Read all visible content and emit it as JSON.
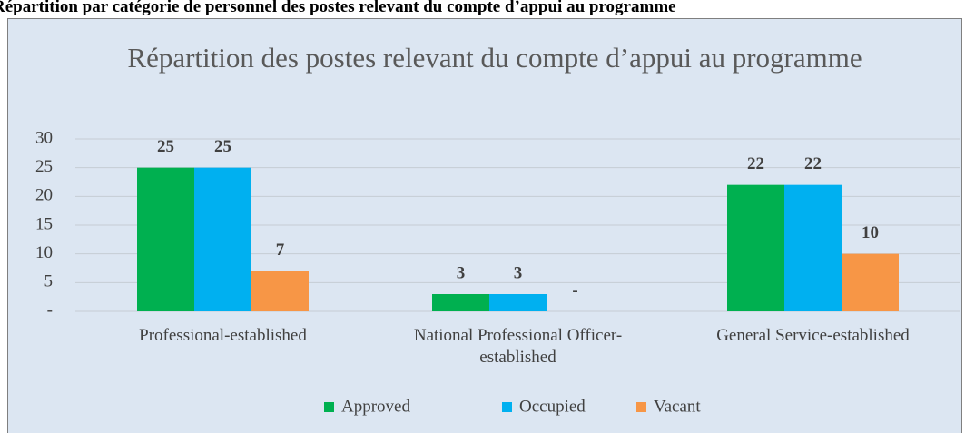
{
  "header": "Répartition par catégorie de personnel des postes relevant du compte d’appui au programme",
  "chart_data": {
    "type": "bar",
    "title": "Répartition des postes relevant du compte d’appui au programme",
    "categories": [
      "Professional-established",
      "National Professional Officer-established",
      "General Service-established"
    ],
    "series": [
      {
        "name": "Approved",
        "color": "#00b050",
        "values": [
          25,
          3,
          22
        ]
      },
      {
        "name": "Occupied",
        "color": "#00b0f0",
        "values": [
          25,
          3,
          22
        ]
      },
      {
        "name": "Vacant",
        "color": "#f79646",
        "values": [
          7,
          0,
          10
        ],
        "value_labels": [
          "7",
          "-",
          "10"
        ]
      }
    ],
    "ylim": [
      0,
      30
    ],
    "yticks": [
      {
        "value": 0,
        "label": "-"
      },
      5,
      10,
      15,
      20,
      25,
      30
    ],
    "grid": true,
    "legend": "bottom"
  }
}
